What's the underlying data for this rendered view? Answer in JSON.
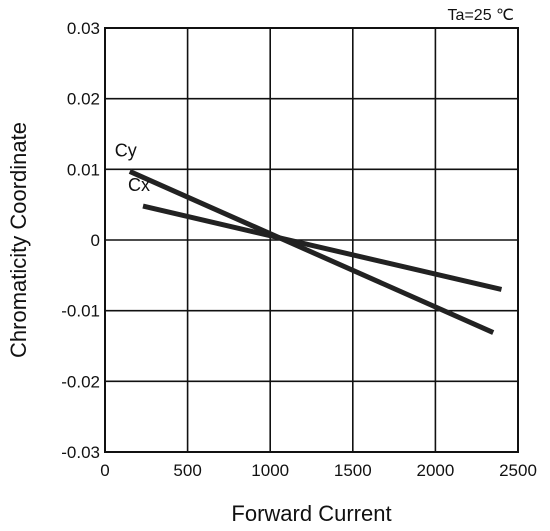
{
  "chart_data": {
    "type": "line",
    "xlabel": "Forward Current",
    "ylabel": "Chromaticity Coordinate",
    "annotation": "Ta=25 ℃",
    "xlim": [
      0,
      2500
    ],
    "ylim": [
      -0.03,
      0.03
    ],
    "x_ticks": [
      0,
      500,
      1000,
      1500,
      2000,
      2500
    ],
    "x_tick_labels": [
      "0",
      "500",
      "1000",
      "1500",
      "2000",
      "2500"
    ],
    "y_ticks": [
      0.03,
      0.02,
      0.01,
      0,
      -0.01,
      -0.02,
      -0.03
    ],
    "y_tick_labels": [
      "0.03",
      "0.02",
      "0.01",
      "0",
      "-0.01",
      "-0.02",
      "-0.03"
    ],
    "grid": true,
    "series": [
      {
        "name": "Cy",
        "x": [
          150,
          2350
        ],
        "y": [
          0.0097,
          -0.0131
        ]
      },
      {
        "name": "Cx",
        "x": [
          230,
          2400
        ],
        "y": [
          0.0048,
          -0.007
        ]
      }
    ]
  }
}
